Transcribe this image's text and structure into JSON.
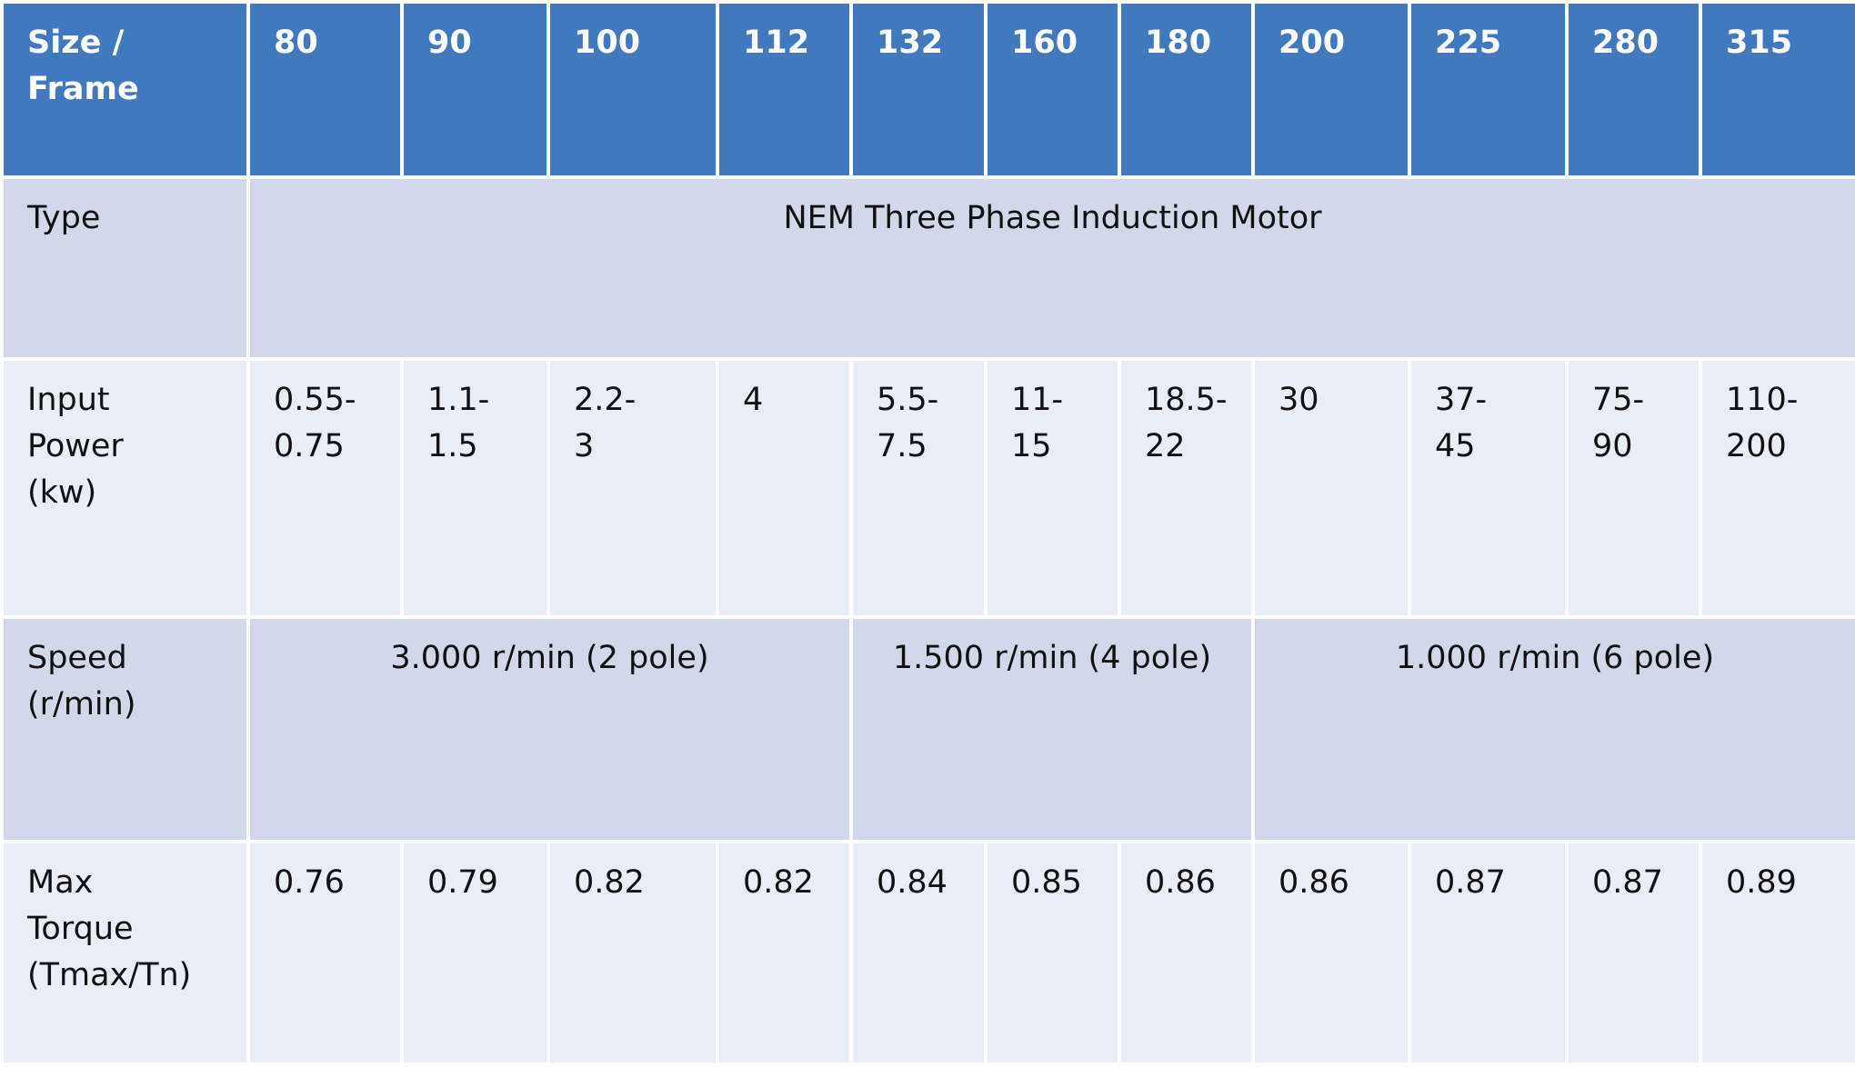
{
  "table": {
    "header": [
      "Size /\nFrame",
      "80",
      "90",
      "100",
      "112",
      "132",
      "160",
      "180",
      "200",
      "225",
      "280",
      "315"
    ],
    "rows": [
      {
        "label": "Type",
        "cells": [
          "NEM Three Phase Induction Motor"
        ]
      },
      {
        "label": "Input\nPower\n(kw)",
        "cells": [
          "0.55-\n0.75",
          "1.1-\n1.5",
          "2.2-\n3",
          "4",
          "5.5-\n7.5",
          "11-\n15",
          "18.5-\n22",
          "30",
          "37-\n45",
          "75-\n90",
          "110-\n200"
        ]
      },
      {
        "label": "Speed\n(r/min)",
        "cells": [
          "3.000 r/min (2 pole)",
          "1.500 r/min (4 pole)",
          "1.000 r/min (6 pole)"
        ]
      },
      {
        "label": "Max\nTorque\n(Tmax/Tn)",
        "cells": [
          "0.76",
          "0.79",
          "0.82",
          "0.82",
          "0.84",
          "0.85",
          "0.86",
          "0.86",
          "0.87",
          "0.87",
          "0.89"
        ]
      }
    ]
  }
}
